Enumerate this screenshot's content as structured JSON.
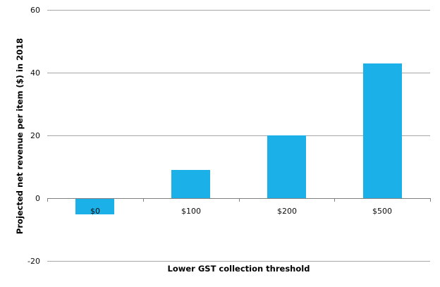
{
  "chart_data": {
    "type": "bar",
    "categories": [
      "$0",
      "$100",
      "$200",
      "$500"
    ],
    "values": [
      -5,
      9,
      20,
      43
    ],
    "xlabel": "Lower GST collection threshold",
    "ylabel": "Projected net revenue per item ($) in 2018",
    "ylim": [
      -20,
      60
    ],
    "yticks": [
      60,
      40,
      20,
      0,
      -20
    ],
    "grid": "horizontal",
    "legend": "none",
    "colors": {
      "bar": "#1bb1e8",
      "gridline": "#a6a6a6",
      "axis": "#808080",
      "text": "#000000"
    }
  }
}
